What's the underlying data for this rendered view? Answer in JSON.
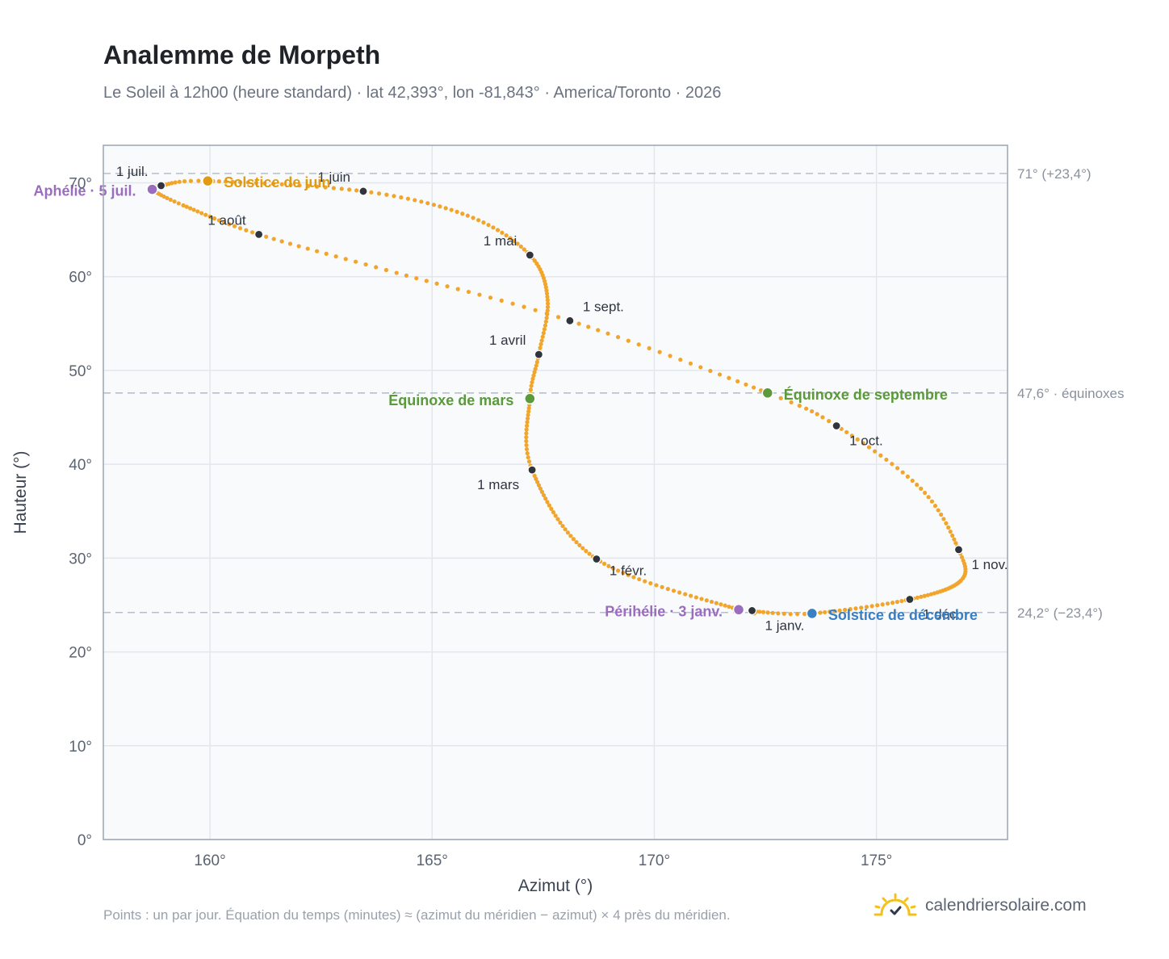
{
  "header": {
    "title": "Analemme de Morpeth",
    "subtitle": "Le Soleil à 12h00 (heure standard) · lat 42,393°, lon -81,843° · America/Toronto · 2026"
  },
  "footer": {
    "note": "Points : un par jour. Équation du temps (minutes) ≈ (azimut du méridien − azimut) × 4 près du méridien.",
    "brand": "calendriersolaire.com"
  },
  "colors": {
    "analemma": "#f2a52b",
    "month_dot": "#2f343d",
    "summer_solstice": "#e09b12",
    "winter_solstice": "#3a7fc1",
    "equinox": "#5a9a3a",
    "apsis": "#9a6dbf",
    "grid": "#e2e7ee",
    "plot_bg": "#f8fafc",
    "frame": "#9aa4b2",
    "reference_line": "#b8bec8"
  },
  "chart_data": {
    "type": "scatter",
    "xlabel": "Azimut (°)",
    "ylabel": "Hauteur (°)",
    "xlim": [
      157.6,
      177.95
    ],
    "ylim": [
      0,
      74
    ],
    "x_ticks": [
      160,
      165,
      170,
      175
    ],
    "x_tick_labels": [
      "160°",
      "165°",
      "170°",
      "175°"
    ],
    "y_ticks": [
      0,
      10,
      20,
      30,
      40,
      50,
      60,
      70
    ],
    "y_tick_labels": [
      "0°",
      "10°",
      "20°",
      "30°",
      "40°",
      "50°",
      "60°",
      "70°"
    ],
    "grid": true,
    "curve_anchors": [
      {
        "doy": 1,
        "az": 172.2,
        "alt": 24.4
      },
      {
        "doy": 3,
        "az": 171.9,
        "alt": 24.5
      },
      {
        "doy": 32,
        "az": 168.7,
        "alt": 29.9
      },
      {
        "doy": 60,
        "az": 167.25,
        "alt": 39.4
      },
      {
        "doy": 79,
        "az": 167.2,
        "alt": 47.0
      },
      {
        "doy": 91,
        "az": 167.4,
        "alt": 51.7
      },
      {
        "doy": 106,
        "az": 167.6,
        "alt": 57.5
      },
      {
        "doy": 121,
        "az": 167.2,
        "alt": 62.3
      },
      {
        "doy": 136,
        "az": 165.8,
        "alt": 66.5
      },
      {
        "doy": 152,
        "az": 163.45,
        "alt": 69.1
      },
      {
        "doy": 172,
        "az": 159.95,
        "alt": 70.2
      },
      {
        "doy": 182,
        "az": 158.9,
        "alt": 69.7
      },
      {
        "doy": 186,
        "az": 158.7,
        "alt": 69.3
      },
      {
        "doy": 197,
        "az": 159.4,
        "alt": 67.6
      },
      {
        "doy": 213,
        "az": 161.1,
        "alt": 64.5
      },
      {
        "doy": 228,
        "az": 164.2,
        "alt": 60.4
      },
      {
        "doy": 244,
        "az": 168.1,
        "alt": 55.3
      },
      {
        "doy": 265,
        "az": 172.55,
        "alt": 47.6
      },
      {
        "doy": 274,
        "az": 174.1,
        "alt": 44.1
      },
      {
        "doy": 290,
        "az": 176.0,
        "alt": 37.4
      },
      {
        "doy": 305,
        "az": 176.85,
        "alt": 30.9
      },
      {
        "doy": 316,
        "az": 176.9,
        "alt": 27.6
      },
      {
        "doy": 335,
        "az": 175.75,
        "alt": 25.6
      },
      {
        "doy": 355,
        "az": 173.55,
        "alt": 24.1
      },
      {
        "doy": 365,
        "az": 172.3,
        "alt": 24.3
      }
    ],
    "month_markers": [
      {
        "label": "1 janv.",
        "az": 172.2,
        "alt": 24.4,
        "anchor": "start",
        "dx": 16,
        "dy": 24
      },
      {
        "label": "1 févr.",
        "az": 168.7,
        "alt": 29.9,
        "anchor": "start",
        "dx": 16,
        "dy": 20
      },
      {
        "label": "1 mars",
        "az": 167.25,
        "alt": 39.4,
        "anchor": "end",
        "dx": -16,
        "dy": 24
      },
      {
        "label": "1 avril",
        "az": 167.4,
        "alt": 51.7,
        "anchor": "end",
        "dx": -16,
        "dy": -12
      },
      {
        "label": "1 mai",
        "az": 167.2,
        "alt": 62.3,
        "anchor": "end",
        "dx": -16,
        "dy": -12
      },
      {
        "label": "1 juin",
        "az": 163.45,
        "alt": 69.1,
        "anchor": "end",
        "dx": -16,
        "dy": -12
      },
      {
        "label": "1 juil.",
        "az": 158.9,
        "alt": 69.7,
        "anchor": "end",
        "dx": -16,
        "dy": -12
      },
      {
        "label": "1 août",
        "az": 161.1,
        "alt": 64.5,
        "anchor": "end",
        "dx": -16,
        "dy": -12
      },
      {
        "label": "1 sept.",
        "az": 168.1,
        "alt": 55.3,
        "anchor": "start",
        "dx": 16,
        "dy": -12
      },
      {
        "label": "1 oct.",
        "az": 174.1,
        "alt": 44.1,
        "anchor": "start",
        "dx": 16,
        "dy": 24
      },
      {
        "label": "1 nov.",
        "az": 176.85,
        "alt": 30.9,
        "anchor": "start",
        "dx": 16,
        "dy": 24
      },
      {
        "label": "1 déc.",
        "az": 175.75,
        "alt": 25.6,
        "anchor": "start",
        "dx": 16,
        "dy": 24
      }
    ],
    "events": [
      {
        "label": "Solstice de juin",
        "az": 159.95,
        "alt": 70.2,
        "color_key": "summer_solstice",
        "anchor": "start",
        "dx": 20,
        "dy": 8
      },
      {
        "label": "Aphélie · 5 juil.",
        "az": 158.7,
        "alt": 69.3,
        "color_key": "apsis",
        "anchor": "end",
        "dx": -20,
        "dy": 8
      },
      {
        "label": "Équinoxe de mars",
        "az": 167.2,
        "alt": 47.0,
        "color_key": "equinox",
        "anchor": "end",
        "dx": -20,
        "dy": 8
      },
      {
        "label": "Équinoxe de septembre",
        "az": 172.55,
        "alt": 47.6,
        "color_key": "equinox",
        "anchor": "start",
        "dx": 20,
        "dy": 8
      },
      {
        "label": "Périhélie · 3 janv.",
        "az": 171.9,
        "alt": 24.5,
        "color_key": "apsis",
        "anchor": "end",
        "dx": -20,
        "dy": 8
      },
      {
        "label": "Solstice de décembre",
        "az": 173.55,
        "alt": 24.1,
        "color_key": "winter_solstice",
        "anchor": "start",
        "dx": 20,
        "dy": 8
      }
    ],
    "reference_lines": [
      {
        "alt": 71.0,
        "label": "71° (+23,4°)"
      },
      {
        "alt": 47.6,
        "label": "47,6° · équinoxes"
      },
      {
        "alt": 24.2,
        "label": "24,2° (−23,4°)"
      }
    ]
  }
}
